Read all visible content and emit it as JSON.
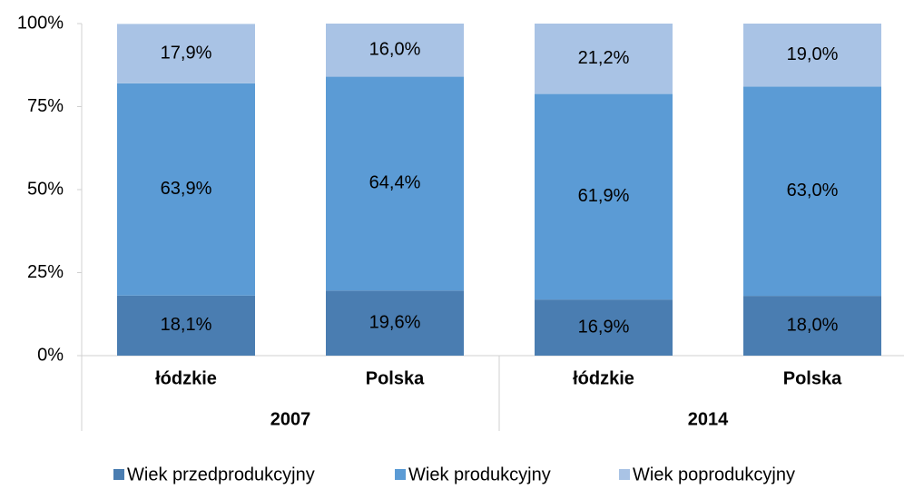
{
  "chart_data": {
    "type": "stacked_bar",
    "categories": [
      "łódzkie",
      "Polska",
      "łódzkie",
      "Polska"
    ],
    "groups": [
      "2007",
      "2014"
    ],
    "series": [
      {
        "name": "Wiek przedprodukcyjny",
        "color": "#4a7db1",
        "values": [
          18.1,
          19.6,
          16.9,
          18.0
        ],
        "value_labels": [
          "18,1%",
          "19,6%",
          "16,9%",
          "18,0%"
        ]
      },
      {
        "name": "Wiek produkcyjny",
        "color": "#5b9bd5",
        "values": [
          63.9,
          64.4,
          61.9,
          63.0
        ],
        "value_labels": [
          "63,9%",
          "64,4%",
          "61,9%",
          "63,0%"
        ]
      },
      {
        "name": "Wiek poprodukcyjny",
        "color": "#a9c3e5",
        "values": [
          17.9,
          16.0,
          21.2,
          19.0
        ],
        "value_labels": [
          "17,9%",
          "16,0%",
          "21,2%",
          "19,0%"
        ]
      }
    ],
    "ylim": [
      0,
      100
    ],
    "yticks": [
      {
        "value": 0,
        "label": "0%"
      },
      {
        "value": 25,
        "label": "25%"
      },
      {
        "value": 50,
        "label": "50%"
      },
      {
        "value": 75,
        "label": "75%"
      },
      {
        "value": 100,
        "label": "100%"
      }
    ],
    "legend": "bottom"
  }
}
